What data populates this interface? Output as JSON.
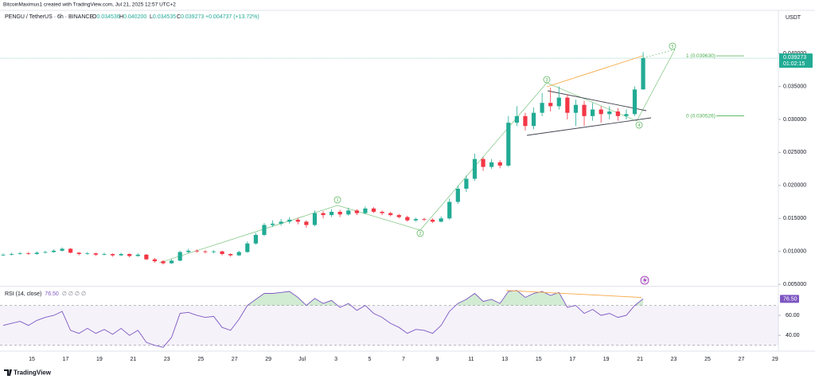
{
  "header": {
    "attribution": "BitcoinMaximus1 created with TradingView.com, Jul 21, 2025 12:57 UTC+2",
    "symbol": "PENGU / TetherUS · 6h · BINANCE",
    "ohlc": [
      {
        "label": "O",
        "value": "0.034536"
      },
      {
        "label": "H",
        "value": "0.040200"
      },
      {
        "label": "L",
        "value": "0.034535"
      },
      {
        "label": "C",
        "value": "0.039273"
      }
    ],
    "change": "+0.004737 (+13.72%)"
  },
  "chart_data": [
    {
      "type": "candlestick",
      "currency": "USDT",
      "up_color": "#22ab94",
      "down_color": "#f23645",
      "x_labels": [
        "15",
        "17",
        "19",
        "21",
        "23",
        "25",
        "27",
        "29",
        "Jul",
        "3",
        "5",
        "7",
        "9",
        "11",
        "13",
        "15",
        "17",
        "19",
        "21",
        "23",
        "25",
        "27",
        "29"
      ],
      "open": [
        0.0094,
        0.0095,
        0.0096,
        0.0097,
        0.0096,
        0.0098,
        0.0099,
        0.0101,
        0.0104,
        0.0098,
        0.0096,
        0.0097,
        0.0095,
        0.0096,
        0.0094,
        0.0096,
        0.0093,
        0.0095,
        0.0088,
        0.0085,
        0.0082,
        0.0086,
        0.0099,
        0.0101,
        0.01,
        0.0099,
        0.01,
        0.0096,
        0.0094,
        0.0099,
        0.0112,
        0.0125,
        0.014,
        0.0142,
        0.0145,
        0.0148,
        0.0145,
        0.014,
        0.0158,
        0.0155,
        0.016,
        0.0156,
        0.0162,
        0.0158,
        0.0165,
        0.016,
        0.0158,
        0.0155,
        0.0152,
        0.0147,
        0.0149,
        0.0148,
        0.0145,
        0.015,
        0.0175,
        0.0195,
        0.021,
        0.024,
        0.0228,
        0.0235,
        0.023,
        0.0295,
        0.0305,
        0.029,
        0.031,
        0.0325,
        0.032,
        0.0333,
        0.031,
        0.0322,
        0.0305,
        0.0315,
        0.0308,
        0.0312,
        0.0305,
        0.0308,
        0.034536
      ],
      "high": [
        0.0097,
        0.0098,
        0.0099,
        0.0099,
        0.01,
        0.0101,
        0.0103,
        0.0106,
        0.0105,
        0.0099,
        0.0099,
        0.0098,
        0.0098,
        0.0097,
        0.0098,
        0.0097,
        0.0097,
        0.0096,
        0.009,
        0.0087,
        0.0088,
        0.0101,
        0.0104,
        0.0103,
        0.0102,
        0.0102,
        0.0101,
        0.0097,
        0.0101,
        0.0115,
        0.0128,
        0.0143,
        0.0147,
        0.0149,
        0.0152,
        0.0151,
        0.0147,
        0.0162,
        0.0161,
        0.0164,
        0.0163,
        0.0166,
        0.0164,
        0.0168,
        0.0167,
        0.0162,
        0.016,
        0.0157,
        0.0154,
        0.0151,
        0.0151,
        0.015,
        0.0153,
        0.018,
        0.02,
        0.0215,
        0.0248,
        0.0243,
        0.024,
        0.0238,
        0.0305,
        0.032,
        0.031,
        0.0318,
        0.034,
        0.0348,
        0.035,
        0.0338,
        0.033,
        0.0328,
        0.0325,
        0.032,
        0.032,
        0.0317,
        0.0315,
        0.035,
        0.0402
      ],
      "low": [
        0.0093,
        0.0094,
        0.0095,
        0.0095,
        0.0095,
        0.0097,
        0.0098,
        0.01,
        0.0097,
        0.0094,
        0.0095,
        0.0093,
        0.0094,
        0.0092,
        0.0093,
        0.0091,
        0.0092,
        0.0087,
        0.0083,
        0.008,
        0.0081,
        0.0085,
        0.0097,
        0.0098,
        0.0097,
        0.0097,
        0.0094,
        0.0092,
        0.0093,
        0.0098,
        0.011,
        0.0123,
        0.0137,
        0.0139,
        0.0142,
        0.0141,
        0.0136,
        0.0138,
        0.015,
        0.0152,
        0.0152,
        0.0154,
        0.0155,
        0.0156,
        0.0158,
        0.0155,
        0.0153,
        0.015,
        0.0145,
        0.0145,
        0.0146,
        0.0143,
        0.0144,
        0.0148,
        0.0172,
        0.019,
        0.0207,
        0.0222,
        0.0225,
        0.0226,
        0.0228,
        0.029,
        0.0283,
        0.0285,
        0.0305,
        0.0312,
        0.0315,
        0.03,
        0.029,
        0.029,
        0.0298,
        0.0295,
        0.03,
        0.0298,
        0.03,
        0.0305,
        0.034535
      ],
      "close": [
        0.0095,
        0.0096,
        0.0097,
        0.0096,
        0.0098,
        0.0099,
        0.0101,
        0.0104,
        0.0098,
        0.0096,
        0.0097,
        0.0095,
        0.0096,
        0.0094,
        0.0096,
        0.0093,
        0.0095,
        0.0088,
        0.0085,
        0.0082,
        0.0086,
        0.0099,
        0.0101,
        0.01,
        0.0099,
        0.01,
        0.0096,
        0.0094,
        0.0099,
        0.0112,
        0.0125,
        0.014,
        0.0142,
        0.0145,
        0.0148,
        0.0145,
        0.014,
        0.0158,
        0.0155,
        0.016,
        0.0156,
        0.0162,
        0.0158,
        0.0165,
        0.016,
        0.0158,
        0.0155,
        0.0152,
        0.0147,
        0.0149,
        0.0148,
        0.0145,
        0.015,
        0.0175,
        0.0195,
        0.021,
        0.024,
        0.0228,
        0.0235,
        0.023,
        0.0295,
        0.0305,
        0.029,
        0.031,
        0.0325,
        0.032,
        0.0333,
        0.031,
        0.0322,
        0.0305,
        0.0315,
        0.0308,
        0.0312,
        0.0305,
        0.0308,
        0.034536,
        0.039273
      ],
      "ylim": [
        0.0049,
        0.0464
      ],
      "yticks": [
        {
          "value": 0.04,
          "label": "0.040000"
        },
        {
          "value": 0.035,
          "label": "0.035000"
        },
        {
          "value": 0.03,
          "label": "0.030000"
        },
        {
          "value": 0.025,
          "label": "0.025000"
        },
        {
          "value": 0.02,
          "label": "0.020000"
        },
        {
          "value": 0.015,
          "label": "0.015000"
        },
        {
          "value": 0.01,
          "label": "0.010000"
        },
        {
          "value": 0.005,
          "label": "0.005000"
        }
      ],
      "last_price": {
        "value": 0.039273,
        "label": "0.039273"
      },
      "countdown": "01:02:15",
      "fib": [
        {
          "value": 0.03963,
          "label": "1 (0.039630)"
        },
        {
          "value": 0.030526,
          "label": "0 (0.030526)"
        }
      ],
      "waves": [
        "1",
        "2",
        "3",
        "4",
        "5"
      ]
    },
    {
      "type": "line",
      "title": "RSI (14, close)",
      "title_value": "76.50",
      "extras": "∅ ∅ ∅ ∅",
      "color": "#7e57c2",
      "values": [
        50,
        52,
        54,
        50,
        55,
        58,
        60,
        64,
        45,
        42,
        47,
        42,
        46,
        41,
        47,
        40,
        45,
        33,
        30,
        28,
        38,
        62,
        63,
        60,
        58,
        59,
        48,
        45,
        56,
        70,
        76,
        82,
        82,
        83,
        84,
        78,
        70,
        77,
        72,
        75,
        68,
        72,
        65,
        70,
        62,
        58,
        52,
        48,
        42,
        46,
        45,
        42,
        50,
        64,
        72,
        76,
        82,
        74,
        76,
        72,
        84,
        85,
        78,
        82,
        84,
        80,
        83,
        68,
        70,
        62,
        66,
        60,
        62,
        58,
        60,
        70,
        76.5
      ],
      "last_label": "76.50",
      "ylim": [
        25,
        88
      ],
      "bands": [
        70,
        30
      ],
      "yticks": [
        {
          "value": 60,
          "label": "60.00"
        },
        {
          "value": 40,
          "label": "40.00"
        }
      ]
    }
  ],
  "footer": {
    "brand": "TradingView"
  }
}
